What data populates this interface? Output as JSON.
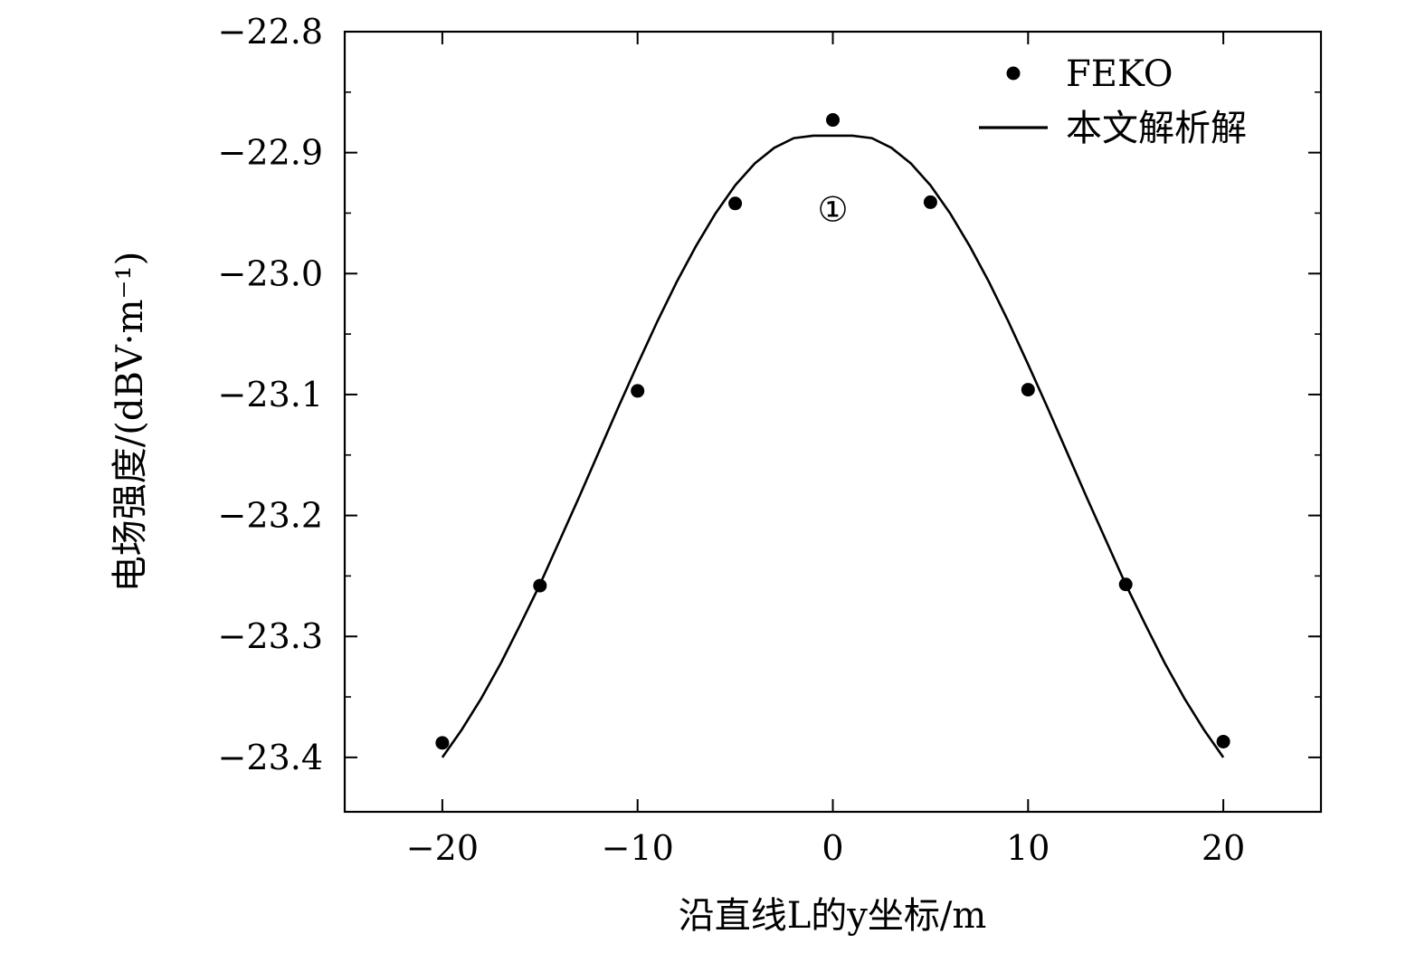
{
  "chart_data": {
    "type": "scatter",
    "xlabel": "沿直线L的y坐标/m",
    "ylabel": "电场强度/(dBV·m⁻¹)",
    "xlim": [
      -25,
      25
    ],
    "ylim": [
      -23.445,
      -22.8
    ],
    "x_ticks": [
      -20,
      -10,
      0,
      10,
      20
    ],
    "x_tick_labels": [
      "−20",
      "−10",
      "0",
      "10",
      "20"
    ],
    "y_ticks": [
      -22.8,
      -22.9,
      -23.0,
      -23.1,
      -23.2,
      -23.3,
      -23.4
    ],
    "y_tick_labels": [
      "−22.8",
      "−22.9",
      "−23.0",
      "−23.1",
      "−23.2",
      "−23.3",
      "−23.4"
    ],
    "grid": false,
    "legend_position": "top-right",
    "series": [
      {
        "name": "FEKO",
        "kind": "scatter",
        "color": "#000000",
        "x": [
          -20,
          -15,
          -10,
          -5,
          0,
          5,
          10,
          15,
          20
        ],
        "y": [
          -23.388,
          -23.258,
          -23.097,
          -22.942,
          -22.873,
          -22.941,
          -23.096,
          -23.257,
          -23.387
        ]
      },
      {
        "name": "本文解析解",
        "kind": "line",
        "color": "#000000",
        "x": [
          -20,
          -19,
          -18,
          -17,
          -16,
          -15,
          -14,
          -13,
          -12,
          -11,
          -10,
          -9,
          -8,
          -7,
          -6,
          -5,
          -4,
          -3,
          -2,
          -1,
          0,
          1,
          2,
          3,
          4,
          5,
          6,
          7,
          8,
          9,
          10,
          11,
          12,
          13,
          14,
          15,
          16,
          17,
          18,
          19,
          20
        ],
        "y": [
          -23.4,
          -23.377,
          -23.351,
          -23.322,
          -23.29,
          -23.257,
          -23.221,
          -23.185,
          -23.148,
          -23.111,
          -23.075,
          -23.04,
          -23.007,
          -22.977,
          -22.95,
          -22.927,
          -22.909,
          -22.896,
          -22.888,
          -22.886,
          -22.886,
          -22.886,
          -22.888,
          -22.896,
          -22.909,
          -22.927,
          -22.95,
          -22.977,
          -23.007,
          -23.04,
          -23.075,
          -23.111,
          -23.148,
          -23.185,
          -23.221,
          -23.257,
          -23.29,
          -23.322,
          -23.351,
          -23.377,
          -23.4
        ]
      }
    ],
    "annotations": [
      {
        "text": "①",
        "x": 0,
        "y": -22.947
      }
    ]
  }
}
